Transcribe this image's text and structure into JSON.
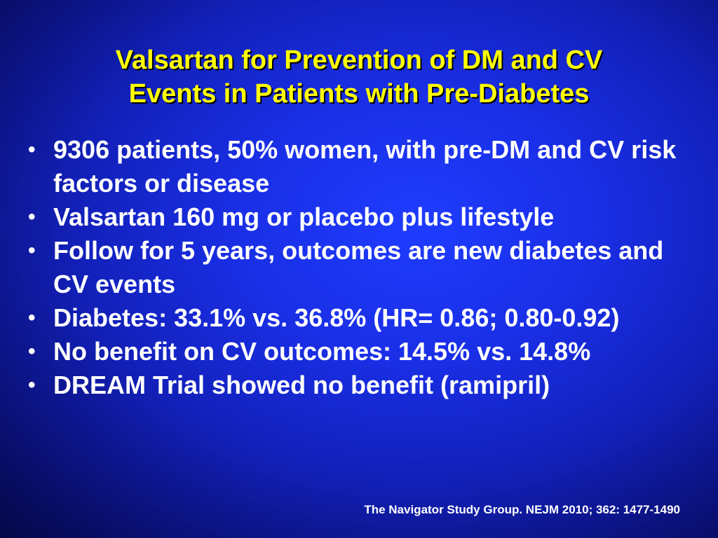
{
  "title": {
    "line1": "Valsartan for Prevention of DM and CV",
    "line2": "Events in Patients with Pre-Diabetes"
  },
  "bullet_symbol": "•",
  "bullets": [
    "9306 patients, 50% women, with pre-DM and CV risk factors or disease",
    "Valsartan 160 mg or placebo plus lifestyle",
    "Follow for 5 years, outcomes are new diabetes and CV events",
    "Diabetes: 33.1% vs. 36.8% (HR= 0.86; 0.80-0.92)",
    "No benefit on CV outcomes: 14.5% vs. 14.8%",
    "DREAM Trial showed no benefit (ramipril)"
  ],
  "citation": "The Navigator Study Group. NEJM 2010; 362: 1477-1490",
  "colors": {
    "background": "#1a2fe6",
    "title": "#ffff00",
    "body_text": "#ffffff"
  }
}
